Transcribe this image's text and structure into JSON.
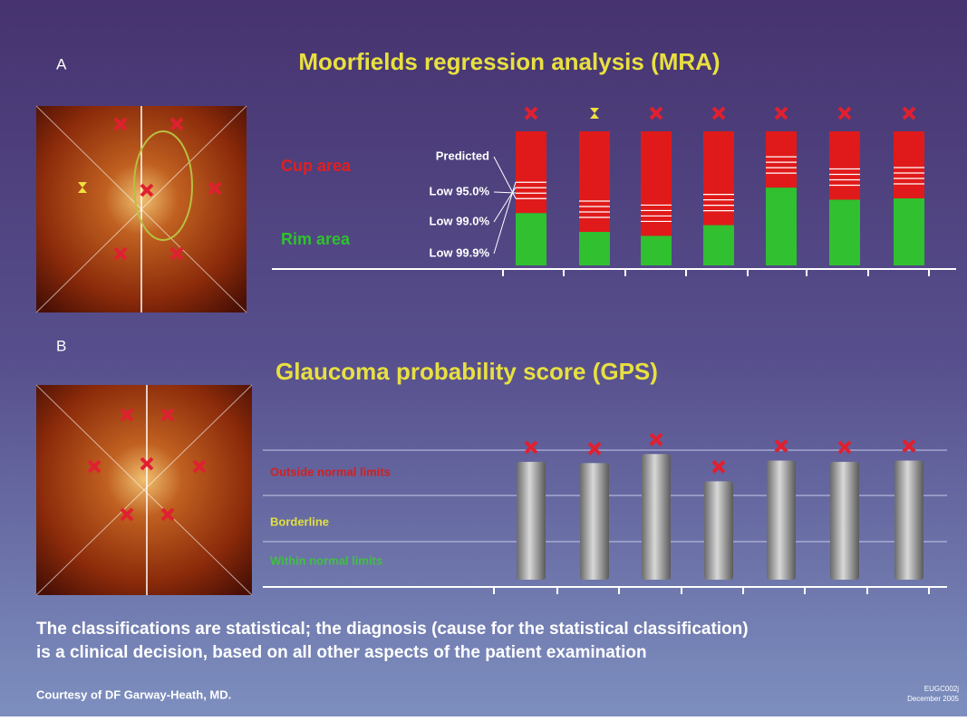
{
  "panel_a": {
    "letter": "A",
    "title": "Moorfields regression analysis (MRA)",
    "labels": {
      "cup": "Cup area",
      "rim": "Rim area"
    },
    "lines": [
      "Predicted",
      "Low 95.0%",
      "Low 99.0%",
      "Low 99.9%"
    ],
    "rim_percent": [
      39,
      25,
      22,
      30,
      58,
      49,
      50
    ]
  },
  "panel_b": {
    "letter": "B",
    "title": "Glaucoma probability score (GPS)",
    "zones": [
      "Outside normal limits",
      "Borderline",
      "Within normal limits"
    ],
    "scores": [
      0.91,
      0.9,
      0.97,
      0.76,
      0.92,
      0.91,
      0.92
    ]
  },
  "footer": {
    "lines": [
      "The classifications are statistical; the diagnosis (cause for the statistical classification)",
      "is a clinical decision, based on all other aspects of the patient examination"
    ],
    "credit": "Courtesy of DF Garway-Heath, MD.",
    "code": "EUGC002j",
    "date": "December 2005"
  }
}
